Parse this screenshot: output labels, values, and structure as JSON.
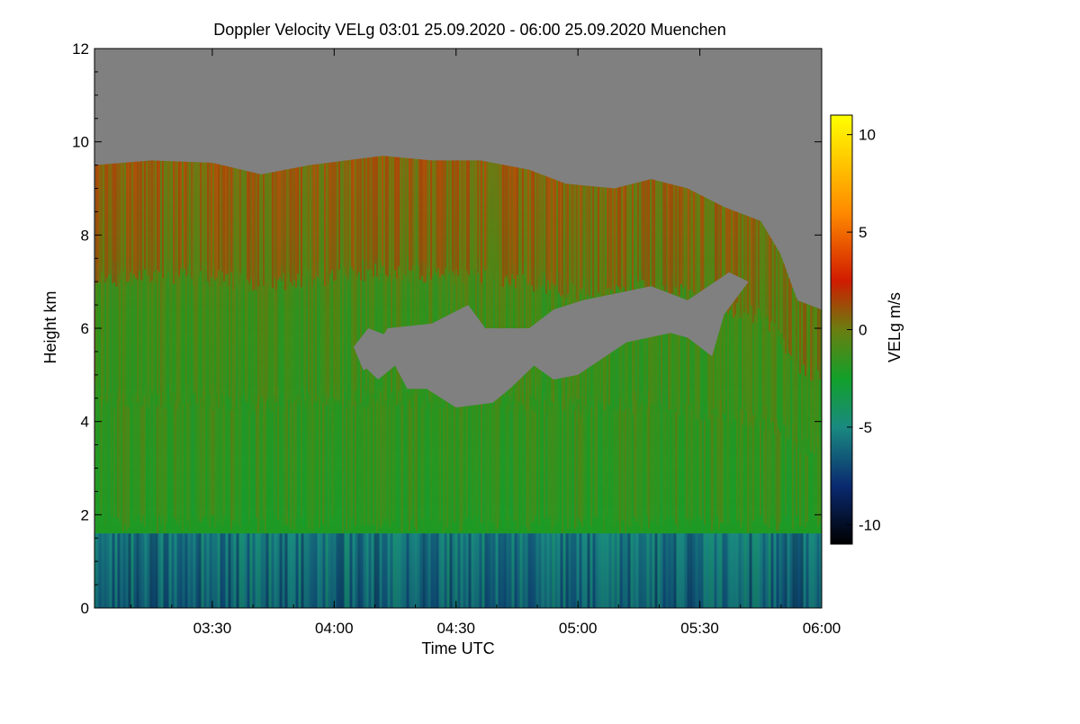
{
  "chart_data": {
    "type": "heatmap",
    "title": "Doppler Velocity VELg   03:01 25.09.2020 - 06:00 25.09.2020 Muenchen",
    "xlabel": "Time UTC",
    "ylabel": "Height km",
    "colorbar_label": "VELg m/s",
    "x_range_hours": [
      3.0167,
      6.0
    ],
    "x_ticks": [
      {
        "label": "03:30",
        "value": 3.5
      },
      {
        "label": "04:00",
        "value": 4.0
      },
      {
        "label": "04:30",
        "value": 4.5
      },
      {
        "label": "05:00",
        "value": 5.0
      },
      {
        "label": "05:30",
        "value": 5.5
      },
      {
        "label": "06:00",
        "value": 6.0
      }
    ],
    "ylim": [
      0,
      12
    ],
    "y_ticks": [
      {
        "label": "0",
        "value": 0
      },
      {
        "label": "2",
        "value": 2
      },
      {
        "label": "4",
        "value": 4
      },
      {
        "label": "6",
        "value": 6
      },
      {
        "label": "8",
        "value": 8
      },
      {
        "label": "10",
        "value": 10
      },
      {
        "label": "12",
        "value": 12
      }
    ],
    "clim": [
      -11,
      11
    ],
    "cbar_ticks": [
      {
        "label": "10",
        "value": 10
      },
      {
        "label": "5",
        "value": 5
      },
      {
        "label": "0",
        "value": 0
      },
      {
        "label": "-5",
        "value": -5
      },
      {
        "label": "-10",
        "value": -10
      }
    ],
    "colormap": [
      {
        "value": -11,
        "color": "#000000"
      },
      {
        "value": -8,
        "color": "#0a2a70"
      },
      {
        "value": -5,
        "color": "#1a8a80"
      },
      {
        "value": -2.5,
        "color": "#12a02a"
      },
      {
        "value": 0,
        "color": "#6a7e10"
      },
      {
        "value": 2.5,
        "color": "#d01b00"
      },
      {
        "value": 6,
        "color": "#ff8a00"
      },
      {
        "value": 11,
        "color": "#ffff00"
      }
    ],
    "no_data_color": "#808080",
    "boundary_layer_top_km": 1.6,
    "cloud_top_km": [
      {
        "t": 3.02,
        "h": 9.5
      },
      {
        "t": 3.25,
        "h": 9.6
      },
      {
        "t": 3.5,
        "h": 9.55
      },
      {
        "t": 3.7,
        "h": 9.3
      },
      {
        "t": 3.9,
        "h": 9.5
      },
      {
        "t": 4.2,
        "h": 9.7
      },
      {
        "t": 4.4,
        "h": 9.6
      },
      {
        "t": 4.6,
        "h": 9.6
      },
      {
        "t": 4.8,
        "h": 9.4
      },
      {
        "t": 4.95,
        "h": 9.1
      },
      {
        "t": 5.15,
        "h": 9.0
      },
      {
        "t": 5.3,
        "h": 9.2
      },
      {
        "t": 5.45,
        "h": 9.0
      },
      {
        "t": 5.6,
        "h": 8.6
      },
      {
        "t": 5.75,
        "h": 8.3
      },
      {
        "t": 5.83,
        "h": 7.6
      },
      {
        "t": 5.9,
        "h": 6.6
      },
      {
        "t": 6.0,
        "h": 6.4
      }
    ],
    "gaps": [
      {
        "name": "gap-main",
        "points": [
          {
            "t": 4.12,
            "h": 5.2
          },
          {
            "t": 4.22,
            "h": 6.0
          },
          {
            "t": 4.4,
            "h": 6.1
          },
          {
            "t": 4.55,
            "h": 6.5
          },
          {
            "t": 4.62,
            "h": 6.0
          },
          {
            "t": 4.8,
            "h": 6.0
          },
          {
            "t": 4.9,
            "h": 6.4
          },
          {
            "t": 5.02,
            "h": 6.6
          },
          {
            "t": 5.3,
            "h": 6.9
          },
          {
            "t": 5.45,
            "h": 6.6
          },
          {
            "t": 5.62,
            "h": 7.2
          },
          {
            "t": 5.7,
            "h": 7.0
          },
          {
            "t": 5.6,
            "h": 6.3
          },
          {
            "t": 5.55,
            "h": 5.4
          },
          {
            "t": 5.45,
            "h": 5.8
          },
          {
            "t": 5.38,
            "h": 5.9
          },
          {
            "t": 5.2,
            "h": 5.7
          },
          {
            "t": 5.0,
            "h": 5.0
          },
          {
            "t": 4.9,
            "h": 4.9
          },
          {
            "t": 4.82,
            "h": 5.2
          },
          {
            "t": 4.72,
            "h": 4.7
          },
          {
            "t": 4.65,
            "h": 4.4
          },
          {
            "t": 4.5,
            "h": 4.3
          },
          {
            "t": 4.38,
            "h": 4.7
          },
          {
            "t": 4.3,
            "h": 4.7
          },
          {
            "t": 4.25,
            "h": 5.2
          },
          {
            "t": 4.18,
            "h": 4.9
          }
        ]
      },
      {
        "name": "gap-left",
        "points": [
          {
            "t": 4.08,
            "h": 5.6
          },
          {
            "t": 4.14,
            "h": 6.0
          },
          {
            "t": 4.24,
            "h": 5.8
          },
          {
            "t": 4.22,
            "h": 5.4
          },
          {
            "t": 4.12,
            "h": 5.1
          }
        ]
      }
    ]
  }
}
